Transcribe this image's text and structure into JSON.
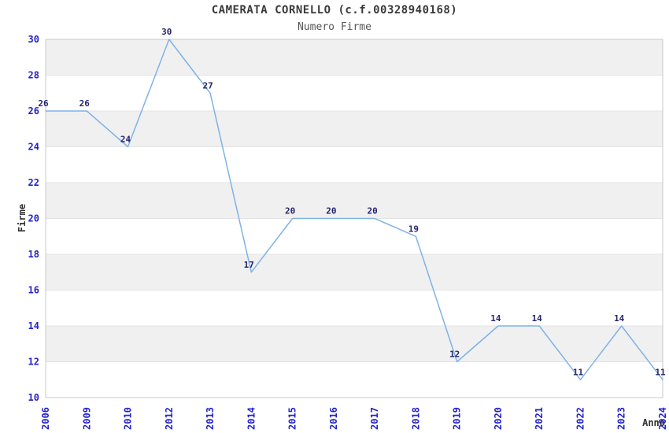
{
  "header": {
    "title": "CAMERATA CORNELLO (c.f.00328940168)",
    "subtitle": "Numero Firme"
  },
  "axes": {
    "x_label": "Anno",
    "y_label": "Firme"
  },
  "chart_data": {
    "type": "line",
    "title": "CAMERATA CORNELLO (c.f.00328940168)",
    "subtitle": "Numero Firme",
    "xlabel": "Anno",
    "ylabel": "Firme",
    "categories": [
      "2006",
      "2009",
      "2010",
      "2012",
      "2013",
      "2014",
      "2015",
      "2016",
      "2017",
      "2018",
      "2019",
      "2020",
      "2021",
      "2022",
      "2023",
      "2024"
    ],
    "values": [
      26,
      26,
      24,
      30,
      27,
      17,
      20,
      20,
      20,
      19,
      12,
      14,
      14,
      11,
      14,
      11
    ],
    "ylim": [
      10,
      30
    ],
    "ytick_step": 2,
    "yticks": [
      10,
      12,
      14,
      16,
      18,
      20,
      22,
      24,
      26,
      28,
      30
    ],
    "grid": "horizontal alternating bands",
    "legend_position": "none",
    "point_labels_shown": true
  },
  "colors": {
    "line": "#7fb2e8",
    "data_label": "#24246e",
    "axis_tick_label": "#2222cc",
    "title_text": "#3a3a3a",
    "subtitle_text": "#555555",
    "axis_name_text": "#303030",
    "band_gray": "#f0f0f0",
    "band_white": "#ffffff",
    "grid_line": "#e3e3e3",
    "plot_border": "#c9c9c9",
    "background": "#ffffff"
  }
}
